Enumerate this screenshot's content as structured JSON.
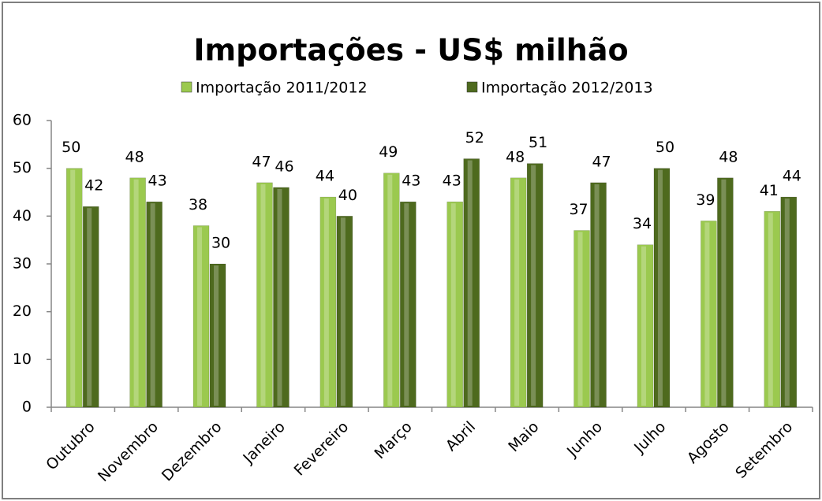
{
  "chart_data": {
    "type": "bar",
    "title": "Importações - US$ milhão",
    "categories": [
      "Outubro",
      "Novembro",
      "Dezembro",
      "Janeiro",
      "Fevereiro",
      "Março",
      "Abril",
      "Maio",
      "Junho",
      "Julho",
      "Agosto",
      "Setembro"
    ],
    "series": [
      {
        "name": "Importação 2011/2012",
        "color": "#9bc94f",
        "values": [
          50,
          48,
          38,
          47,
          44,
          49,
          43,
          48,
          37,
          34,
          39,
          41
        ]
      },
      {
        "name": "Importação 2012/2013",
        "color": "#4e6a1e",
        "values": [
          42,
          43,
          30,
          46,
          40,
          43,
          52,
          51,
          47,
          50,
          48,
          44
        ]
      }
    ],
    "ylim": [
      0,
      60
    ],
    "yticks": [
      0,
      10,
      20,
      30,
      40,
      50,
      60
    ],
    "grid": false,
    "legend": "top"
  }
}
